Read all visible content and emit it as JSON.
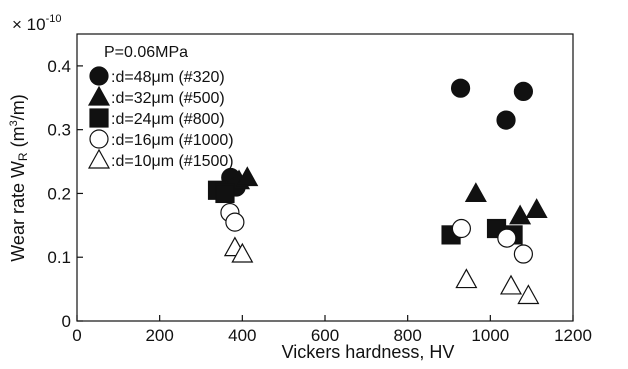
{
  "chart_data": {
    "type": "scatter",
    "xlabel": "Vickers hardness, HV",
    "ylabel": "Wear rate W",
    "ylabel_sub": "R",
    "ylabel_unit_open": " (m",
    "ylabel_unit_sup": "3",
    "ylabel_unit_close": "/m)",
    "y_multiplier": "× 10",
    "y_multiplier_exp": "-10",
    "xlim": [
      0,
      1200
    ],
    "ylim": [
      0,
      0.45
    ],
    "xticks": [
      "0",
      "200",
      "400",
      "600",
      "800",
      "1000",
      "1200"
    ],
    "xtick_values": [
      0,
      200,
      400,
      600,
      800,
      1000,
      1200
    ],
    "yticks": [
      "0",
      "0.1",
      "0.2",
      "0.3",
      "0.4"
    ],
    "ytick_values": [
      0,
      0.1,
      0.2,
      0.3,
      0.4
    ],
    "grid": false,
    "legend_position": "top-left",
    "annotation": "P=0.06MPa",
    "series": [
      {
        "name": ":d=48μm (#320)",
        "marker": "filled-circle",
        "points": [
          [
            372,
            0.225
          ],
          [
            385,
            0.21
          ],
          [
            928,
            0.365
          ],
          [
            1038,
            0.315
          ],
          [
            1080,
            0.36
          ]
        ]
      },
      {
        "name": ":d=32μm (#500)",
        "marker": "filled-triangle",
        "points": [
          [
            392,
            0.22
          ],
          [
            412,
            0.225
          ],
          [
            965,
            0.2
          ],
          [
            1072,
            0.165
          ],
          [
            1112,
            0.175
          ]
        ]
      },
      {
        "name": ":d=24μm (#800)",
        "marker": "filled-square",
        "points": [
          [
            340,
            0.205
          ],
          [
            358,
            0.2
          ],
          [
            905,
            0.135
          ],
          [
            1015,
            0.145
          ],
          [
            1055,
            0.135
          ]
        ]
      },
      {
        "name": ":d=16μm (#1000)",
        "marker": "open-circle",
        "points": [
          [
            370,
            0.17
          ],
          [
            382,
            0.155
          ],
          [
            930,
            0.145
          ],
          [
            1040,
            0.13
          ],
          [
            1080,
            0.105
          ]
        ]
      },
      {
        "name": ":d=10μm (#1500)",
        "marker": "open-triangle",
        "points": [
          [
            382,
            0.115
          ],
          [
            400,
            0.105
          ],
          [
            942,
            0.065
          ],
          [
            1050,
            0.055
          ],
          [
            1092,
            0.04
          ]
        ]
      }
    ]
  }
}
